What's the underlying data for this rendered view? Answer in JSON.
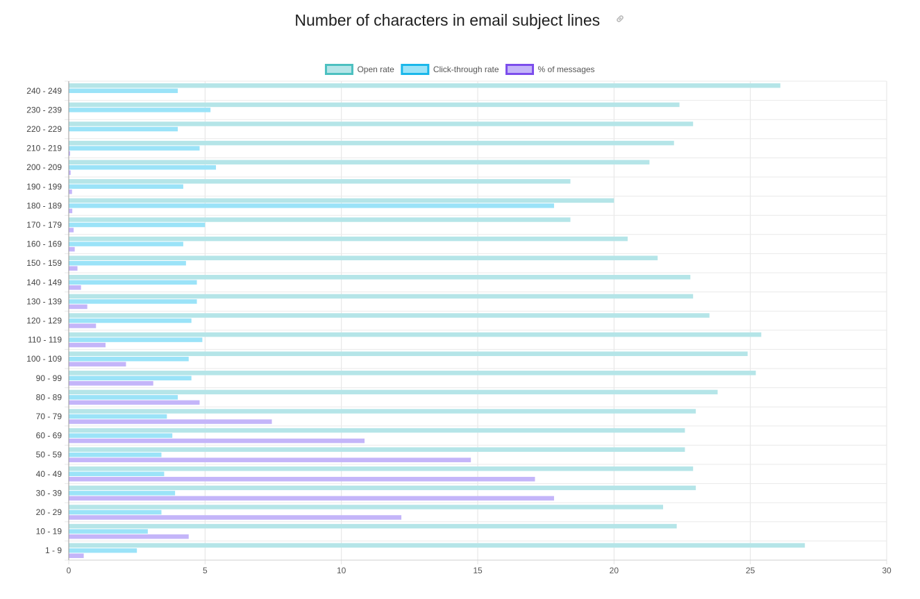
{
  "page": {
    "title": "Number of characters in email subject lines",
    "title_icon": "link-icon"
  },
  "chart_data": {
    "type": "bar",
    "orientation": "horizontal",
    "title": "Number of characters in email subject lines",
    "categories": [
      "240 - 249",
      "230 - 239",
      "220 - 229",
      "210 - 219",
      "200 - 209",
      "190 - 199",
      "180 - 189",
      "170 - 179",
      "160 - 169",
      "150 - 159",
      "140 - 149",
      "130 - 139",
      "120 - 129",
      "110 - 119",
      "100 - 109",
      "90 - 99",
      "80 - 89",
      "70 - 79",
      "60 - 69",
      "50 - 59",
      "40 - 49",
      "30 - 39",
      "20 - 29",
      "10 - 19",
      "1 - 9"
    ],
    "series": [
      {
        "name": "Open rate",
        "color": "#b5e5e8",
        "legend_border": "#4cc0c0",
        "values": [
          26.1,
          22.4,
          22.9,
          22.2,
          21.3,
          18.4,
          20.0,
          18.4,
          20.5,
          21.6,
          22.8,
          22.9,
          23.5,
          25.4,
          24.9,
          25.2,
          23.8,
          23.0,
          22.6,
          22.6,
          22.9,
          23.0,
          21.8,
          22.3,
          27.0
        ]
      },
      {
        "name": "Click-through rate",
        "color": "#9be3f8",
        "legend_border": "#1ab7ea",
        "values": [
          4.0,
          5.2,
          4.0,
          4.8,
          5.4,
          4.2,
          17.8,
          5.0,
          4.2,
          4.3,
          4.7,
          4.7,
          4.5,
          4.9,
          4.4,
          4.5,
          4.0,
          3.6,
          3.8,
          3.4,
          3.5,
          3.9,
          3.4,
          2.9,
          2.5
        ]
      },
      {
        "name": "% of messages",
        "color": "#c4b5f9",
        "legend_border": "#7c4dec",
        "values": [
          0.0,
          0.0,
          0.0,
          0.05,
          0.07,
          0.12,
          0.13,
          0.18,
          0.22,
          0.32,
          0.45,
          0.68,
          1.0,
          1.35,
          2.1,
          3.1,
          4.8,
          7.45,
          10.85,
          14.75,
          17.1,
          17.8,
          12.2,
          4.4,
          0.55
        ]
      }
    ],
    "xlim": [
      0,
      30
    ],
    "x_ticks": [
      "0",
      "5",
      "10",
      "15",
      "20",
      "25",
      "30"
    ],
    "grid": true,
    "legend_position": "top-center"
  }
}
